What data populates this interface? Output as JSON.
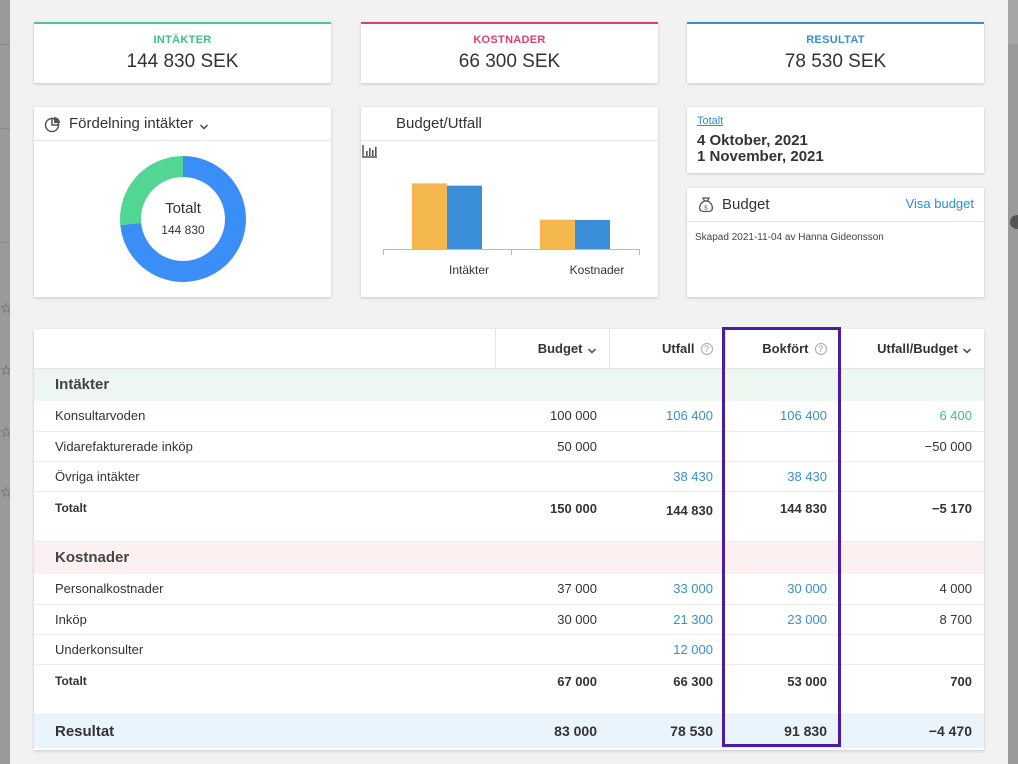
{
  "kpi": {
    "income": {
      "label": "INTÄKTER",
      "value": "144 830 SEK",
      "color": "#3fbf84"
    },
    "costs": {
      "label": "KOSTNADER",
      "value": "66 300 SEK",
      "color": "#d8416b"
    },
    "result": {
      "label": "RESULTAT",
      "value": "78 530 SEK",
      "color": "#3a8fd0"
    }
  },
  "donut": {
    "title": "Fördelning intäkter",
    "center_label": "Totalt",
    "center_value": "144 830",
    "icon": "pie-chart-icon"
  },
  "bar_chart": {
    "title": "Budget/Utfall",
    "icon": "bar-chart-icon"
  },
  "chart_data": [
    {
      "type": "pie",
      "labels": [
        "Konsultarvoden",
        "Övriga intäkter"
      ],
      "values": [
        106400,
        38430
      ],
      "colors": [
        "#3a8ef6",
        "#52d694"
      ]
    },
    {
      "type": "bar",
      "categories": [
        "Intäkter",
        "Kostnader"
      ],
      "series": [
        {
          "values": [
            150000,
            67000
          ],
          "color": "#f4b84e"
        },
        {
          "values": [
            144830,
            66300
          ],
          "color": "#3a8fd8"
        }
      ],
      "ylim": [
        0,
        160000
      ]
    }
  ],
  "period": {
    "label": "Totalt",
    "from": "4 Oktober, 2021",
    "to": "1 November, 2021"
  },
  "budget": {
    "title": "Budget",
    "link": "Visa budget",
    "created": "Skapad 2021-11-04 av Hanna Gideonsson",
    "icon": "money-bag-icon"
  },
  "table": {
    "headers": [
      "",
      "Budget",
      "Utfall",
      "Bokfört",
      "Utfall/Budget"
    ],
    "income_section": "Intäkter",
    "income_rows": [
      {
        "name": "Konsultarvoden",
        "budget": "100 000",
        "utfall": "106 400",
        "bokfort": "106 400",
        "diff": "6 400"
      },
      {
        "name": "Vidarefakturerade inköp",
        "budget": "50 000",
        "utfall": "",
        "bokfort": "",
        "diff": "−50 000"
      },
      {
        "name": "Övriga intäkter",
        "budget": "",
        "utfall": "38 430",
        "bokfort": "38 430",
        "diff": ""
      }
    ],
    "income_total": {
      "name": "Totalt",
      "budget": "150 000",
      "utfall": "144 830",
      "bokfort": "144 830",
      "diff": "−5 170"
    },
    "cost_section": "Kostnader",
    "cost_rows": [
      {
        "name": "Personalkostnader",
        "budget": "37 000",
        "utfall": "33 000",
        "bokfort": "30 000",
        "diff": "4 000"
      },
      {
        "name": "Inköp",
        "budget": "30 000",
        "utfall": "21 300",
        "bokfort": "23 000",
        "diff": "8 700"
      },
      {
        "name": "Underkonsulter",
        "budget": "",
        "utfall": "12 000",
        "bokfort": "",
        "diff": ""
      }
    ],
    "cost_total": {
      "name": "Totalt",
      "budget": "67 000",
      "utfall": "66 300",
      "bokfort": "53 000",
      "diff": "700"
    },
    "result": {
      "name": "Resultat",
      "budget": "83 000",
      "utfall": "78 530",
      "bokfort": "91 830",
      "diff": "−4 470"
    }
  },
  "highlight_color": "#4a1aa8"
}
